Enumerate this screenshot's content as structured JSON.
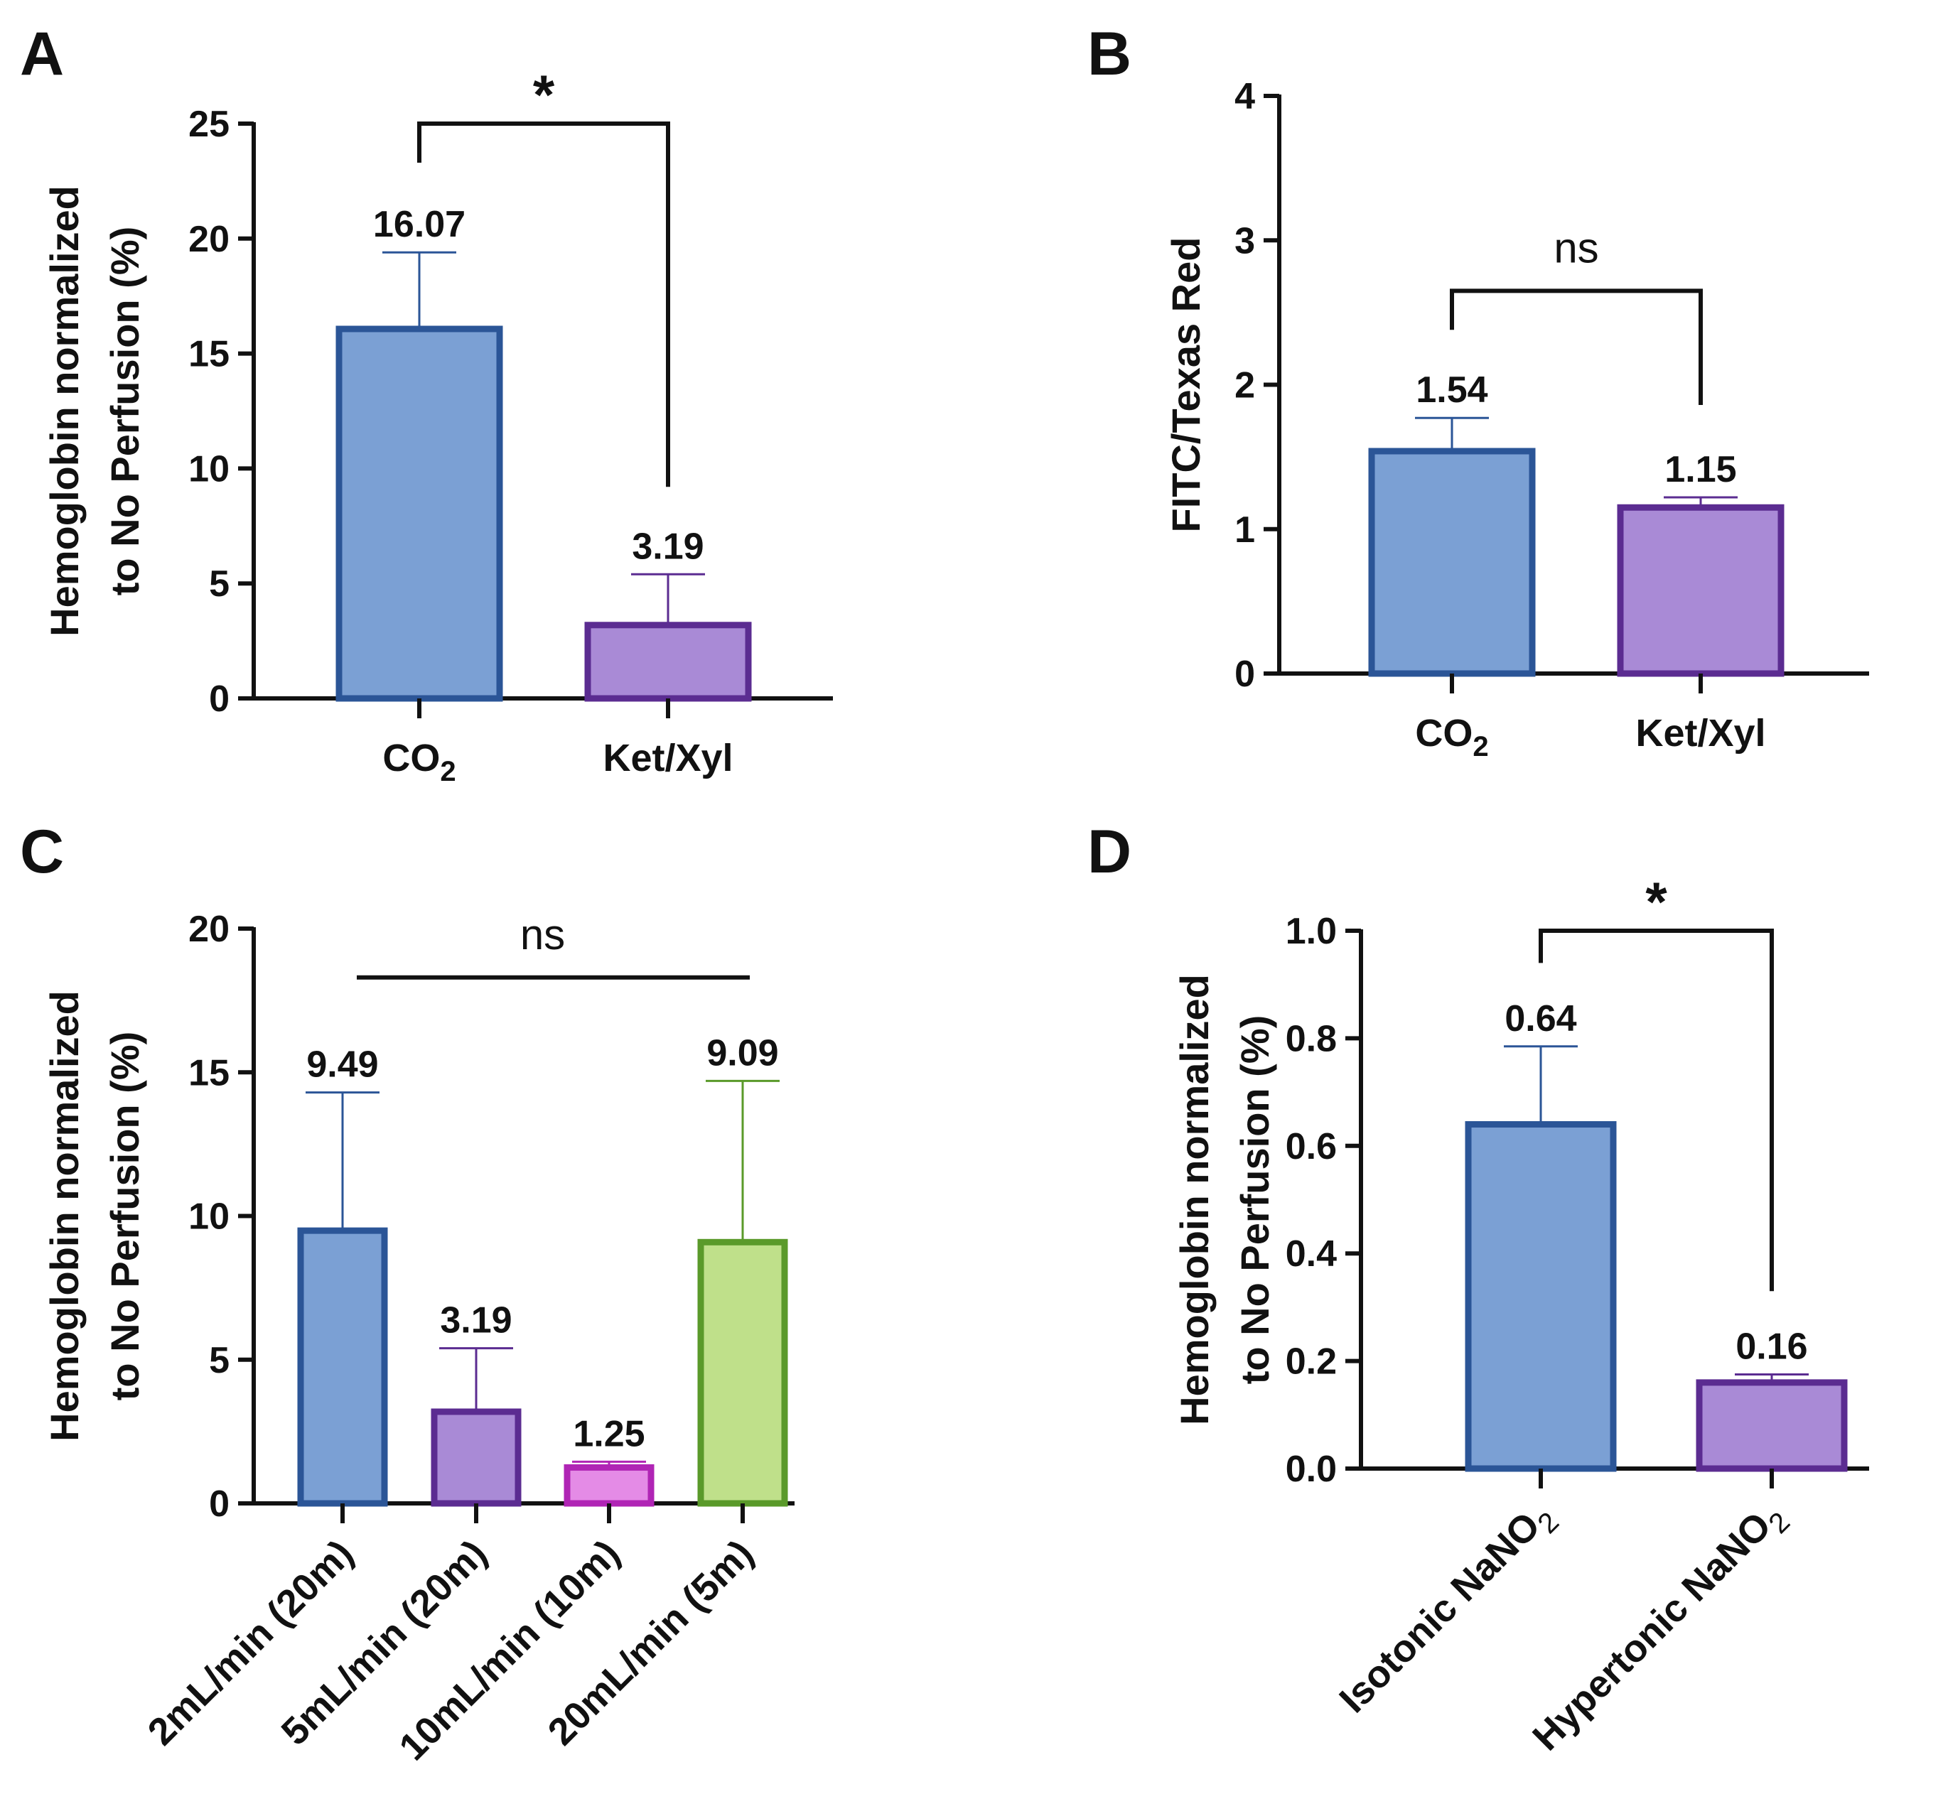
{
  "figure": {
    "panels": [
      "A",
      "B",
      "C",
      "D"
    ]
  },
  "chart_data": [
    {
      "panel": "A",
      "type": "bar",
      "ylabel_lines": [
        "Hemoglobin normalized",
        "to No Perfusion (%)"
      ],
      "ylim": [
        0,
        25
      ],
      "yticks": [
        "0",
        "5",
        "10",
        "15",
        "20",
        "25"
      ],
      "ytick_values": [
        0,
        5,
        10,
        15,
        20,
        25
      ],
      "categories": [
        {
          "base": "CO",
          "sub": "2"
        },
        {
          "base": "Ket/Xyl",
          "sub": ""
        }
      ],
      "values": [
        16.07,
        3.19
      ],
      "value_labels": [
        "16.07",
        "3.19"
      ],
      "error_upper": [
        19.4,
        5.4
      ],
      "fills": [
        "#7ba0d4",
        "#a98ad6"
      ],
      "strokes": [
        "#2b5597",
        "#5b2c91"
      ],
      "significance": {
        "label": "*",
        "from": 0,
        "to": 1,
        "y": 25.0,
        "left_y": 23.3,
        "right_y": 9.2
      }
    },
    {
      "panel": "B",
      "type": "bar",
      "ylabel_lines": [
        "FITC/Texas Red"
      ],
      "ylim": [
        0,
        4
      ],
      "yticks": [
        "0",
        "1",
        "2",
        "3",
        "4"
      ],
      "ytick_values": [
        0,
        1,
        2,
        3,
        4
      ],
      "categories": [
        {
          "base": "CO",
          "sub": "2"
        },
        {
          "base": "Ket/Xyl",
          "sub": ""
        }
      ],
      "values": [
        1.54,
        1.15
      ],
      "value_labels": [
        "1.54",
        "1.15"
      ],
      "error_upper": [
        1.77,
        1.22
      ],
      "fills": [
        "#7ba0d4",
        "#a98ad6"
      ],
      "strokes": [
        "#2b5597",
        "#5b2c91"
      ],
      "significance": {
        "label": "ns",
        "from": 0,
        "to": 1,
        "y": 2.65,
        "left_y": 2.38,
        "right_y": 1.86
      }
    },
    {
      "panel": "C",
      "type": "bar",
      "ylabel_lines": [
        "Hemoglobin normalized",
        "to No Perfusion (%)"
      ],
      "ylim": [
        0,
        20
      ],
      "yticks": [
        "0",
        "5",
        "10",
        "15",
        "20"
      ],
      "ytick_values": [
        0,
        5,
        10,
        15,
        20
      ],
      "categories": [
        {
          "base": "2mL/min (20m)",
          "sub": ""
        },
        {
          "base": "5mL/min (20m)",
          "sub": ""
        },
        {
          "base": "10mL/min (10m)",
          "sub": ""
        },
        {
          "base": "20mL/min (5m)",
          "sub": ""
        }
      ],
      "values": [
        9.49,
        3.19,
        1.25,
        9.09
      ],
      "value_labels": [
        "9.49",
        "3.19",
        "1.25",
        "9.09"
      ],
      "error_upper": [
        14.3,
        5.4,
        1.45,
        14.7
      ],
      "fills": [
        "#7ba0d4",
        "#a98ad6",
        "#e48be6",
        "#bfe08a"
      ],
      "strokes": [
        "#2b5597",
        "#5b2c91",
        "#b025b5",
        "#5a9a2a"
      ],
      "significance": {
        "label": "ns",
        "from": 0,
        "to": 3,
        "y": 18.3,
        "flat": true
      }
    },
    {
      "panel": "D",
      "type": "bar",
      "ylabel_lines": [
        "Hemoglobin normalized",
        "to No Perfusion (%)"
      ],
      "ylim": [
        0,
        1.0
      ],
      "yticks": [
        "0.0",
        "0.2",
        "0.4",
        "0.6",
        "0.8",
        "1.0"
      ],
      "ytick_values": [
        0,
        0.2,
        0.4,
        0.6,
        0.8,
        1.0
      ],
      "categories": [
        {
          "base": "Isotonic NaNO",
          "sub": "2"
        },
        {
          "base": "Hypertonic NaNO",
          "sub": "2"
        }
      ],
      "values": [
        0.64,
        0.16
      ],
      "value_labels": [
        "0.64",
        "0.16"
      ],
      "error_upper": [
        0.785,
        0.175
      ],
      "fills": [
        "#7ba0d4",
        "#a98ad6"
      ],
      "strokes": [
        "#2b5597",
        "#5b2c91"
      ],
      "significance": {
        "label": "*",
        "from": 0,
        "to": 1,
        "y": 1.0,
        "left_y": 0.94,
        "right_y": 0.33
      }
    }
  ]
}
